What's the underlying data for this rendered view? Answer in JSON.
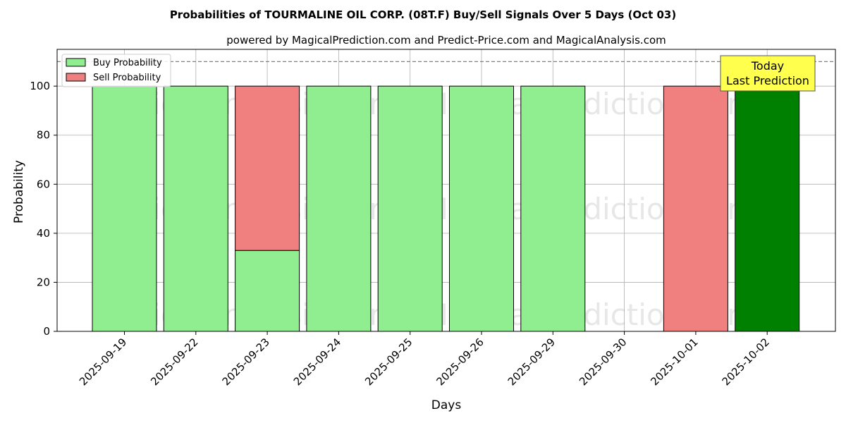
{
  "chart_data": {
    "type": "bar",
    "title": "Probabilities of TOURMALINE OIL CORP. (08T.F) Buy/Sell Signals Over 5 Days (Oct 03)",
    "subtitle": "powered by MagicalPrediction.com and Predict-Price.com and MagicalAnalysis.com",
    "xlabel": "Days",
    "ylabel": "Probability",
    "categories": [
      "2025-09-19",
      "2025-09-22",
      "2025-09-23",
      "2025-09-24",
      "2025-09-25",
      "2025-09-26",
      "2025-09-29",
      "2025-09-30",
      "2025-10-01",
      "2025-10-02"
    ],
    "series": [
      {
        "name": "Buy Probability",
        "color": "#90ee90",
        "values": [
          100,
          100,
          33,
          100,
          100,
          100,
          100,
          0,
          0,
          100
        ]
      },
      {
        "name": "Sell Probability",
        "color": "#f08080",
        "values": [
          0,
          0,
          67,
          0,
          0,
          0,
          0,
          0,
          100,
          0
        ]
      }
    ],
    "highlight": {
      "category": "2025-10-02",
      "color": "#008000"
    },
    "ylim": [
      0,
      115
    ],
    "yticks": [
      0,
      20,
      40,
      60,
      80,
      100
    ],
    "reference_line": 110,
    "grid": true,
    "legend_position": "top-left",
    "annotation": {
      "lines": [
        "Today",
        "Last Prediction"
      ],
      "color": "#ffff4d"
    },
    "watermarks": [
      "MagicalAnalysis.com",
      "MagicalPrediction.com"
    ]
  }
}
